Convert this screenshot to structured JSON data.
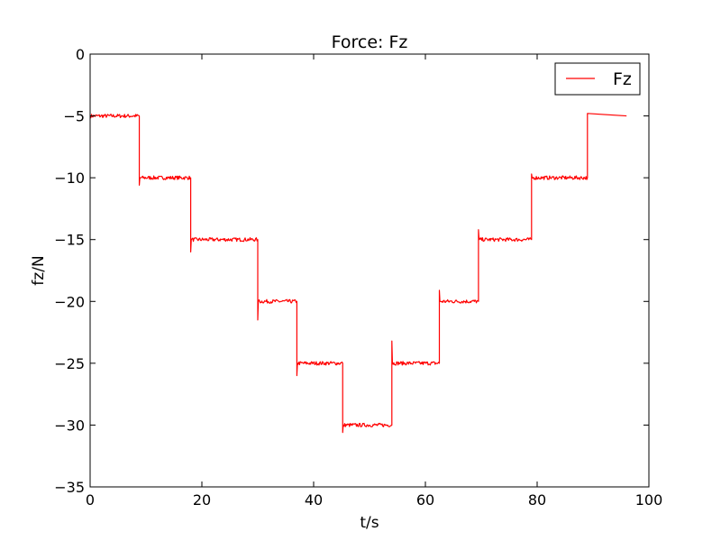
{
  "chart_data": {
    "type": "line",
    "title": "Force: Fz",
    "xlabel": "t/s",
    "ylabel": "fz/N",
    "xlim": [
      0,
      100
    ],
    "ylim": [
      -35,
      0
    ],
    "x_ticks": [
      0,
      20,
      40,
      60,
      80,
      100
    ],
    "x_tick_labels": [
      "0",
      "20",
      "40",
      "60",
      "80",
      "100"
    ],
    "y_ticks": [
      0,
      -5,
      -10,
      -15,
      -20,
      -25,
      -30,
      -35
    ],
    "y_tick_labels": [
      "0",
      "−5",
      "−10",
      "−15",
      "−20",
      "−25",
      "−30",
      "−35"
    ],
    "grid": false,
    "legend": {
      "position": "top-right",
      "entries": [
        "Fz"
      ]
    },
    "series": [
      {
        "name": "Fz",
        "color": "#ff0000",
        "x": [
          0,
          8.8,
          8.8,
          8.9,
          8.9,
          18.0,
          18.0,
          18.1,
          18.1,
          30.0,
          30.0,
          30.1,
          30.1,
          37.0,
          37.0,
          37.1,
          37.1,
          45.2,
          45.2,
          45.3,
          45.3,
          54.0,
          54.0,
          54.1,
          54.1,
          62.5,
          62.5,
          62.6,
          62.6,
          69.5,
          69.5,
          69.6,
          69.6,
          79.0,
          79.0,
          79.1,
          79.1,
          89.0,
          89.0,
          96.0
        ],
        "y": [
          -5,
          -5,
          -10.6,
          -10,
          -10,
          -10,
          -16,
          -15,
          -15,
          -15,
          -21.5,
          -20,
          -20,
          -20,
          -26,
          -25,
          -25,
          -25,
          -30.6,
          -30,
          -30,
          -30,
          -23.2,
          -25,
          -25,
          -25,
          -19.1,
          -20,
          -20,
          -20,
          -14.2,
          -15,
          -15,
          -15,
          -9.7,
          -10,
          -10,
          -10,
          -4.8,
          -5
        ]
      }
    ]
  }
}
